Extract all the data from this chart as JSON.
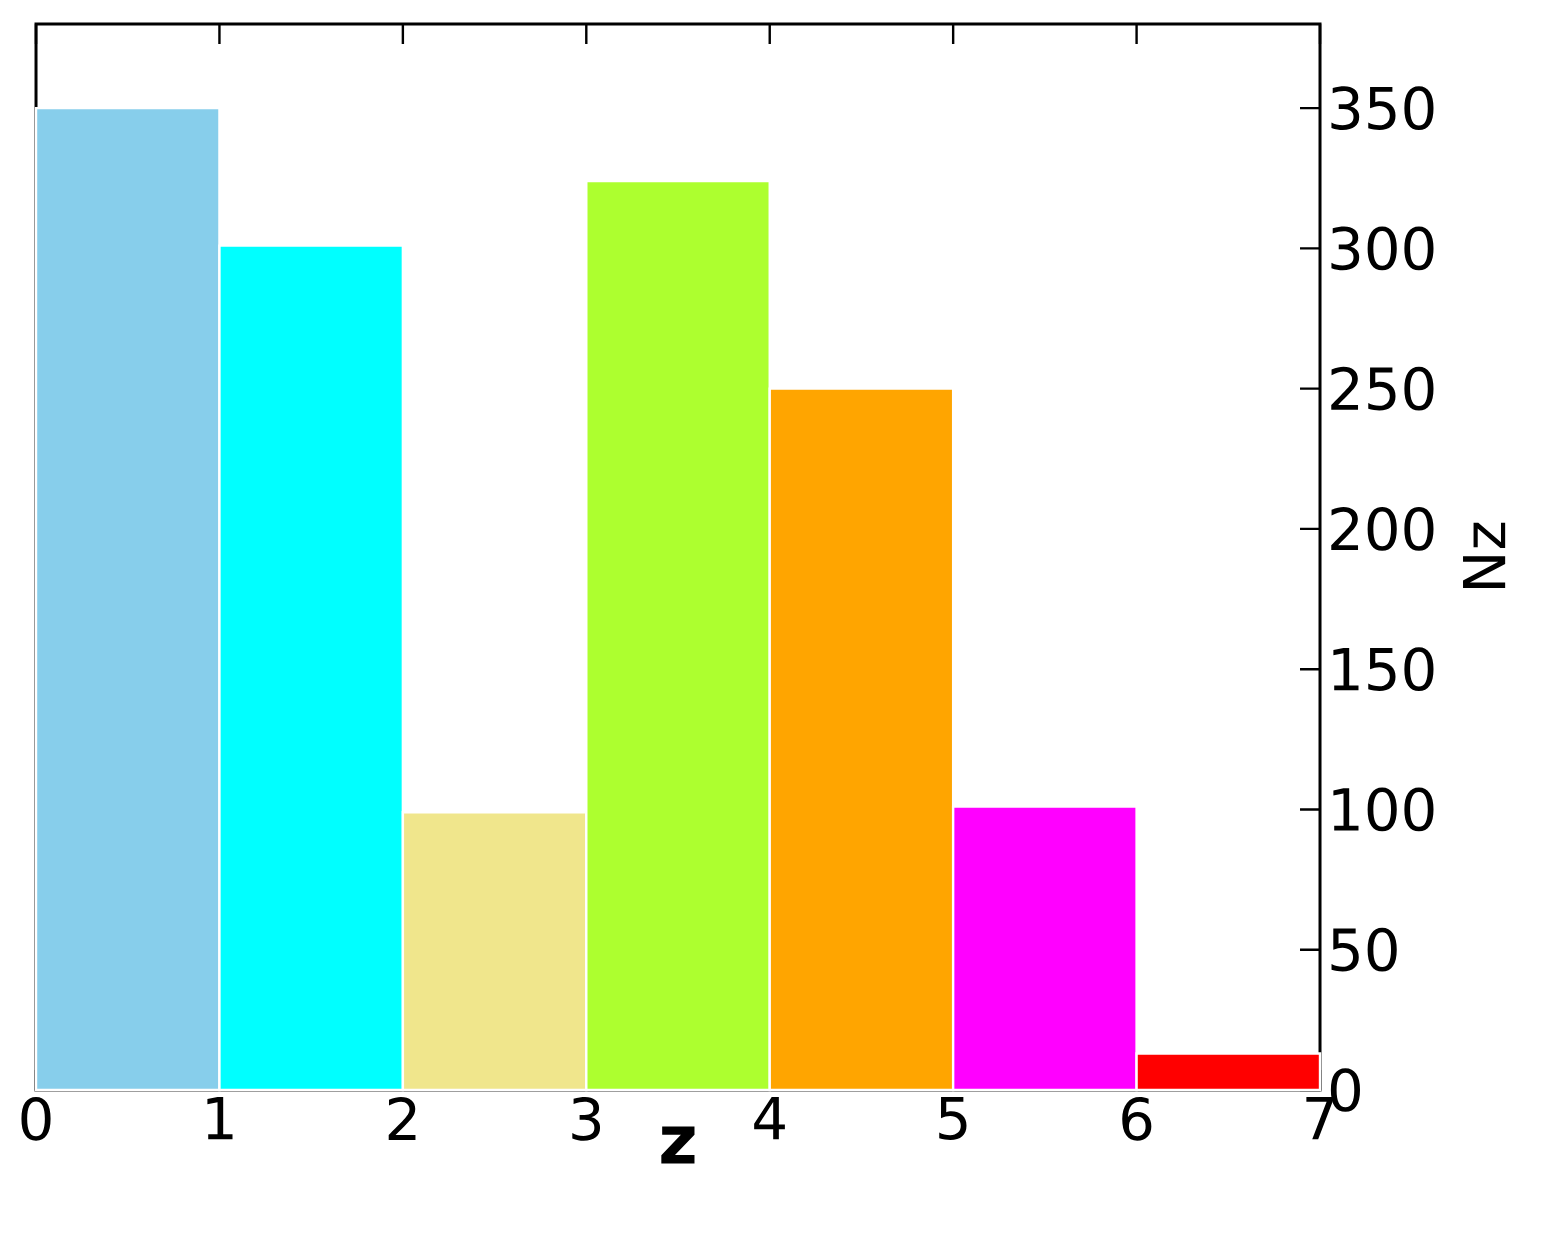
{
  "chart_data": {
    "type": "histogram",
    "xlabel": "z",
    "ylabel": "Nz",
    "bins": [
      0,
      1,
      2,
      3,
      4,
      5,
      6,
      7
    ],
    "values": [
      350,
      301,
      99,
      324,
      250,
      101,
      13
    ],
    "colors": [
      "#87ceeb",
      "#00ffff",
      "#f0e68c",
      "#adff2f",
      "#ffa500",
      "#ff00ff",
      "#ff0000"
    ],
    "xlim": [
      0,
      7
    ],
    "ylim": [
      0,
      380
    ],
    "xticks": [
      0,
      1,
      2,
      3,
      4,
      5,
      6,
      7
    ],
    "yticks": [
      0,
      50,
      100,
      150,
      200,
      250,
      300,
      350
    ]
  }
}
